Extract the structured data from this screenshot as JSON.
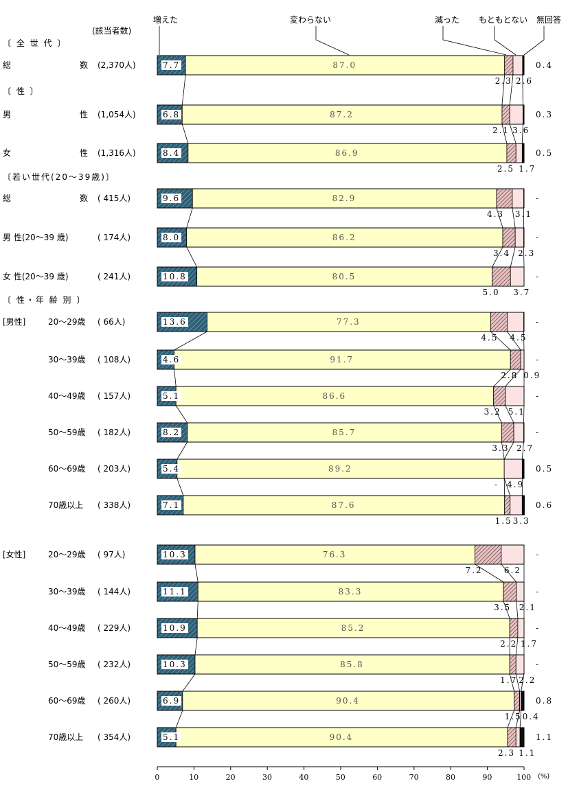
{
  "chart_data": {
    "type": "bar",
    "orientation": "horizontal",
    "stacked": true,
    "xlim": [
      0,
      100
    ],
    "x_ticks": [
      "0",
      "10",
      "20",
      "30",
      "40",
      "50",
      "60",
      "70",
      "80",
      "90",
      "100"
    ],
    "x_unit": "(%)",
    "count_header": "(該当者数)",
    "legend": [
      "増えた",
      "変わらない",
      "減った",
      "もともとない",
      "無回答"
    ],
    "series_colors": [
      "#2e5f76",
      "#ffffc8",
      "#d9a8a8",
      "#fbe3e3",
      "#111111"
    ],
    "sections": [
      {
        "label": "〔 全 世 代 〕"
      },
      {
        "label": "〔 性 〕"
      },
      {
        "label": "〔若い世代(20〜39歳)〕"
      },
      {
        "label": "〔 性・年 齢 別 〕"
      }
    ],
    "rows": [
      {
        "group": "",
        "label_left": "総",
        "label_right": "数",
        "count": "(2,370人)",
        "values": [
          7.7,
          87.0,
          2.3,
          2.6,
          0.4
        ],
        "labels": [
          "7.7",
          "87.0",
          "2.3",
          "2.6",
          "0.4"
        ]
      },
      {
        "group": "",
        "label_left": "男",
        "label_right": "性",
        "count": "(1,054人)",
        "values": [
          6.8,
          87.2,
          2.1,
          3.6,
          0.3
        ],
        "labels": [
          "6.8",
          "87.2",
          "2.1",
          "3.6",
          "0.3"
        ]
      },
      {
        "group": "",
        "label_left": "女",
        "label_right": "性",
        "count": "(1,316人)",
        "values": [
          8.4,
          86.9,
          2.5,
          1.7,
          0.5
        ],
        "labels": [
          "8.4",
          "86.9",
          "2.5",
          "1.7",
          "0.5"
        ]
      },
      {
        "group": "",
        "label_left": "総",
        "label_right": "数",
        "count": "( 415人)",
        "values": [
          9.6,
          82.9,
          4.3,
          3.1,
          0
        ],
        "labels": [
          "9.6",
          "82.9",
          "4.3",
          "3.1",
          "-"
        ]
      },
      {
        "group": "",
        "label_left": "男 性(20〜39 歳)",
        "label_right": "",
        "count": "( 174人)",
        "values": [
          8.0,
          86.2,
          3.4,
          2.3,
          0
        ],
        "labels": [
          "8.0",
          "86.2",
          "3.4",
          "2.3",
          "-"
        ]
      },
      {
        "group": "",
        "label_left": "女 性(20〜39 歳)",
        "label_right": "",
        "count": "( 241人)",
        "values": [
          10.8,
          80.5,
          5.0,
          3.7,
          0
        ],
        "labels": [
          "10.8",
          "80.5",
          "5.0",
          "3.7",
          "-"
        ]
      },
      {
        "group": "[男性]",
        "label_left": "20〜29歳",
        "label_right": "",
        "count": "( 66人)",
        "values": [
          13.6,
          77.3,
          4.5,
          4.5,
          0
        ],
        "labels": [
          "13.6",
          "77.3",
          "4.5",
          "4.5",
          "-"
        ]
      },
      {
        "group": "",
        "label_left": "30〜39歳",
        "label_right": "",
        "count": "( 108人)",
        "values": [
          4.6,
          91.7,
          2.8,
          0.9,
          0
        ],
        "labels": [
          "4.6",
          "91.7",
          "2.8",
          "0.9",
          "-"
        ]
      },
      {
        "group": "",
        "label_left": "40〜49歳",
        "label_right": "",
        "count": "( 157人)",
        "values": [
          5.1,
          86.6,
          3.2,
          5.1,
          0
        ],
        "labels": [
          "5.1",
          "86.6",
          "3.2",
          "5.1",
          "-"
        ]
      },
      {
        "group": "",
        "label_left": "50〜59歳",
        "label_right": "",
        "count": "( 182人)",
        "values": [
          8.2,
          85.7,
          3.3,
          2.7,
          0
        ],
        "labels": [
          "8.2",
          "85.7",
          "3.3",
          "2.7",
          "-"
        ]
      },
      {
        "group": "",
        "label_left": "60〜69歳",
        "label_right": "",
        "count": "( 203人)",
        "values": [
          5.4,
          89.2,
          0,
          4.9,
          0.5
        ],
        "labels": [
          "5.4",
          "89.2",
          "-",
          "4.9",
          "0.5"
        ]
      },
      {
        "group": "",
        "label_left": "70歳以上",
        "label_right": "",
        "count": "( 338人)",
        "values": [
          7.1,
          87.6,
          1.5,
          3.3,
          0.6
        ],
        "labels": [
          "7.1",
          "87.6",
          "1.5",
          "3.3",
          "0.6"
        ]
      },
      {
        "group": "[女性]",
        "label_left": "20〜29歳",
        "label_right": "",
        "count": "( 97人)",
        "values": [
          10.3,
          76.3,
          7.2,
          6.2,
          0
        ],
        "labels": [
          "10.3",
          "76.3",
          "7.2",
          "6.2",
          "-"
        ]
      },
      {
        "group": "",
        "label_left": "30〜39歳",
        "label_right": "",
        "count": "( 144人)",
        "values": [
          11.1,
          83.3,
          3.5,
          2.1,
          0
        ],
        "labels": [
          "11.1",
          "83.3",
          "3.5",
          "2.1",
          "-"
        ]
      },
      {
        "group": "",
        "label_left": "40〜49歳",
        "label_right": "",
        "count": "( 229人)",
        "values": [
          10.9,
          85.2,
          2.2,
          1.7,
          0
        ],
        "labels": [
          "10.9",
          "85.2",
          "2.2",
          "1.7",
          "-"
        ]
      },
      {
        "group": "",
        "label_left": "50〜59歳",
        "label_right": "",
        "count": "( 232人)",
        "values": [
          10.3,
          85.8,
          1.7,
          2.2,
          0
        ],
        "labels": [
          "10.3",
          "85.8",
          "1.7",
          "2.2",
          "-"
        ]
      },
      {
        "group": "",
        "label_left": "60〜69歳",
        "label_right": "",
        "count": "( 260人)",
        "values": [
          6.9,
          90.4,
          1.5,
          0.4,
          0.8
        ],
        "labels": [
          "6.9",
          "90.4",
          "1.5",
          "0.4",
          "0.8"
        ]
      },
      {
        "group": "",
        "label_left": "70歳以上",
        "label_right": "",
        "count": "( 354人)",
        "values": [
          5.1,
          90.4,
          2.3,
          1.1,
          1.1
        ],
        "labels": [
          "5.1",
          "90.4",
          "2.3",
          "1.1",
          "1.1"
        ]
      }
    ]
  }
}
